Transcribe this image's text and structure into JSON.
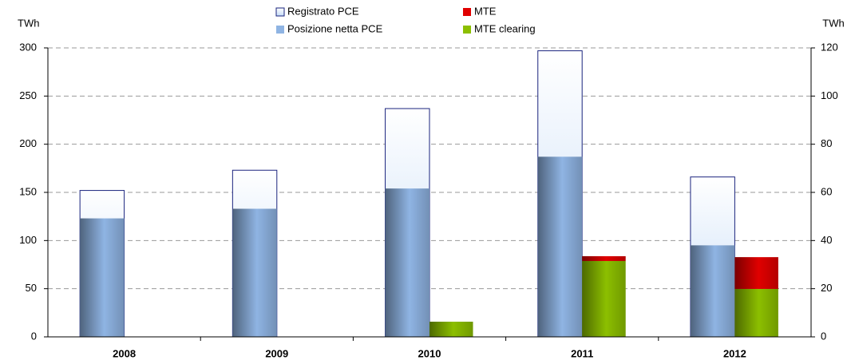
{
  "chart_data": {
    "type": "bar",
    "y_label": "TWh",
    "y2_label": "TWh",
    "categories": [
      "2008",
      "2009",
      "2010",
      "2011",
      "2012"
    ],
    "series": [
      {
        "name": "Registrato PCE",
        "color": "#c6dcf7",
        "values": [
          152,
          173,
          237,
          297,
          166
        ],
        "axis": "y"
      },
      {
        "name": "Posizione netta PCE",
        "color": "#8fb4e3",
        "values": [
          123,
          133,
          154,
          187,
          95
        ],
        "axis": "y"
      },
      {
        "name": "MTE",
        "color": "#e00000",
        "values": [
          null,
          null,
          0,
          2,
          13.2
        ],
        "axis": "y2"
      },
      {
        "name": "MTE clearing",
        "color": "#8cbf00",
        "values": [
          null,
          null,
          6.3,
          31.5,
          19.9
        ],
        "axis": "y2"
      }
    ],
    "ylim": [
      0,
      300
    ],
    "yticks": [
      0,
      50,
      100,
      150,
      200,
      250,
      300
    ],
    "y2lim": [
      0,
      120
    ],
    "y2ticks": [
      0,
      20,
      40,
      60,
      80,
      100,
      120
    ],
    "grid": true
  }
}
